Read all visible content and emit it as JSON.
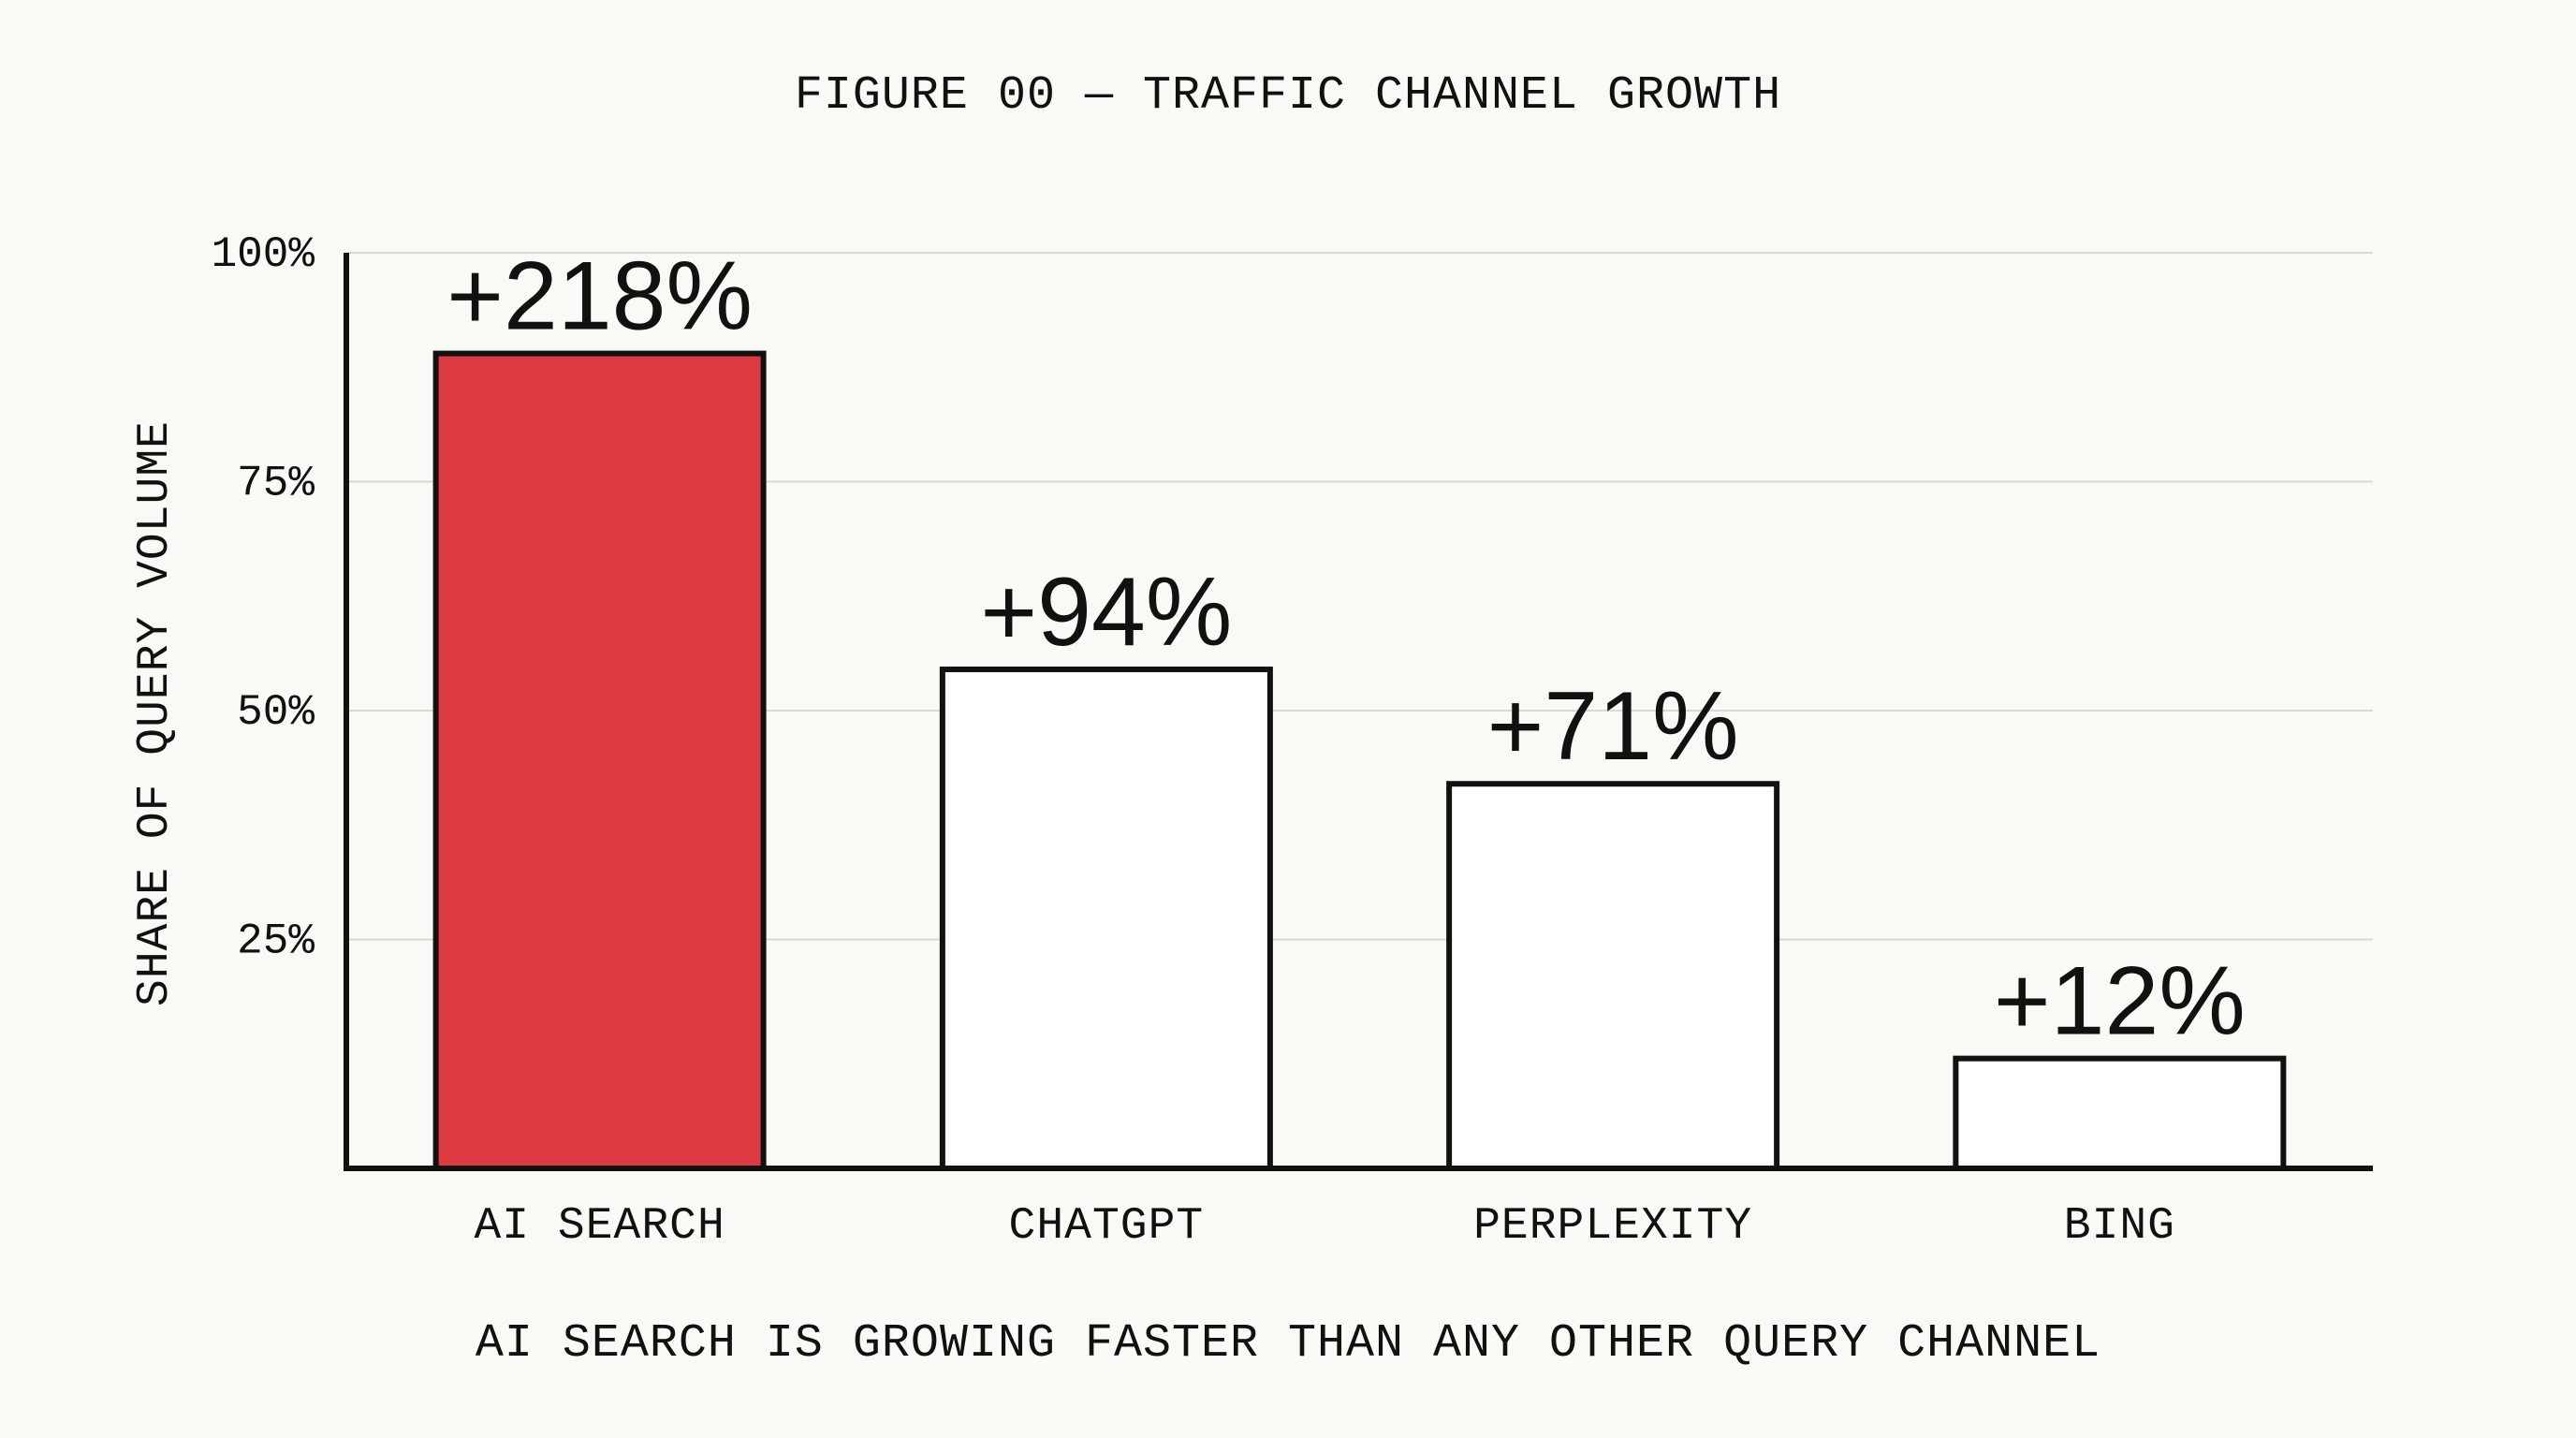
{
  "chart_data": {
    "type": "bar",
    "title": "FIGURE 00 — TRAFFIC CHANNEL GROWTH",
    "caption": "AI SEARCH IS GROWING FASTER THAN ANY OTHER QUERY CHANNEL",
    "xlabel": "",
    "ylabel": "SHARE OF QUERY VOLUME",
    "ylim": [
      0,
      100
    ],
    "yticks": [
      25,
      50,
      75,
      100
    ],
    "ytick_labels": [
      "25%",
      "50%",
      "75%",
      "100%"
    ],
    "grid": true,
    "categories": [
      "AI SEARCH",
      "CHATGPT",
      "PERPLEXITY",
      "BING"
    ],
    "values": [
      89,
      54.5,
      42,
      12
    ],
    "data_labels": [
      "+218%",
      "+94%",
      "+71%",
      "+12%"
    ],
    "bar_colors": [
      "#de3a41",
      "#ffffff",
      "#ffffff",
      "#ffffff"
    ],
    "highlight_color": "#de3a41"
  }
}
